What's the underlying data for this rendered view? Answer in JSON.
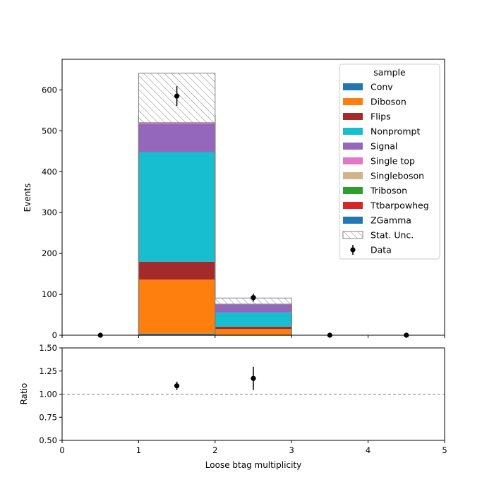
{
  "chart_data": {
    "type": "bar",
    "stacked": true,
    "xlabel": "Loose btag multiplicity",
    "ylabel_main": "Events",
    "ylabel_ratio": "Ratio",
    "xlim": [
      0,
      5
    ],
    "ylim_main": [
      0,
      675
    ],
    "ylim_ratio": [
      0.5,
      1.5
    ],
    "xticks": [
      "0",
      "1",
      "2",
      "3",
      "4",
      "5"
    ],
    "yticks_main": [
      "0",
      "100",
      "200",
      "300",
      "400",
      "500",
      "600"
    ],
    "yticks_ratio": [
      "0.50",
      "0.75",
      "1.00",
      "1.25",
      "1.50"
    ],
    "bins": [
      [
        0,
        1
      ],
      [
        1,
        2
      ],
      [
        2,
        3
      ],
      [
        3,
        4
      ],
      [
        4,
        5
      ]
    ],
    "legend_title": "sample",
    "legend_position": "top-right",
    "series": [
      {
        "name": "Conv",
        "color": "#1f77b4",
        "values": [
          0,
          4,
          1,
          0,
          0
        ]
      },
      {
        "name": "Diboson",
        "color": "#ff7f0e",
        "values": [
          0,
          132,
          14,
          0,
          0
        ]
      },
      {
        "name": "Flips",
        "color": "#a52a2a",
        "values": [
          0,
          44,
          6,
          0,
          0
        ]
      },
      {
        "name": "Nonprompt",
        "color": "#17becf",
        "values": [
          0,
          268,
          35,
          0,
          0
        ]
      },
      {
        "name": "Signal",
        "color": "#9467bd",
        "values": [
          0,
          69,
          19,
          0,
          0
        ]
      },
      {
        "name": "Single top",
        "color": "#e377c2",
        "values": [
          0,
          2,
          0.5,
          0,
          0
        ]
      },
      {
        "name": "Singleboson",
        "color": "#d2b48c",
        "values": [
          0,
          3,
          0.5,
          0,
          0
        ]
      },
      {
        "name": "Triboson",
        "color": "#2ca02c",
        "values": [
          0,
          4,
          0.5,
          0,
          0
        ]
      },
      {
        "name": "Ttbarpowheg",
        "color": "#d62728",
        "values": [
          0,
          7,
          1,
          0,
          0
        ]
      },
      {
        "name": "ZGamma",
        "color": "#1f77b4",
        "values": [
          0,
          4,
          0.5,
          0,
          0
        ]
      }
    ],
    "stat_unc": {
      "name": "Stat. Unc.",
      "low": [
        0,
        520,
        76,
        0,
        0
      ],
      "high": [
        0,
        641,
        91,
        0,
        0
      ]
    },
    "data": {
      "name": "Data",
      "x": [
        0.5,
        1.5,
        2.5,
        3.5,
        4.5
      ],
      "y": [
        0,
        585,
        92,
        0,
        0
      ],
      "yerr": [
        0,
        24,
        9.6,
        0,
        0
      ]
    },
    "ratio": {
      "x": [
        1.5,
        2.5
      ],
      "y": [
        1.09,
        1.17
      ],
      "yerr": [
        0.045,
        0.125
      ],
      "reference": 1.0
    }
  }
}
